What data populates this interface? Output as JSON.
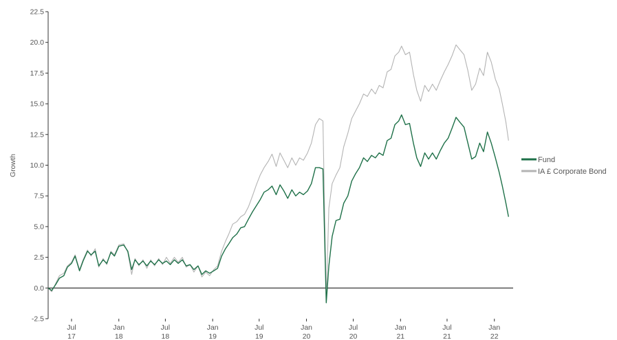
{
  "chart_data": {
    "type": "line",
    "ylabel": "Growth",
    "xlabel": "",
    "ylim": [
      -2.5,
      22.5
    ],
    "xlim": [
      "2017-04-01",
      "2022-03-15"
    ],
    "y_ticks": [
      {
        "value": -2.5,
        "label": "-2.5"
      },
      {
        "value": 0,
        "label": "0.0"
      },
      {
        "value": 2.5,
        "label": "2.5"
      },
      {
        "value": 5,
        "label": "5.0"
      },
      {
        "value": 7.5,
        "label": "7.5"
      },
      {
        "value": 10,
        "label": "10.0"
      },
      {
        "value": 12.5,
        "label": "12.5"
      },
      {
        "value": 15,
        "label": "15.0"
      },
      {
        "value": 17.5,
        "label": "17.5"
      },
      {
        "value": 20,
        "label": "20.0"
      },
      {
        "value": 22.5,
        "label": "22.5"
      }
    ],
    "x_ticks": [
      {
        "date": "2017-07-01",
        "label": [
          "Jul",
          "17"
        ]
      },
      {
        "date": "2018-01-01",
        "label": [
          "Jan",
          "18"
        ]
      },
      {
        "date": "2018-07-01",
        "label": [
          "Jul",
          "18"
        ]
      },
      {
        "date": "2019-01-01",
        "label": [
          "Jan",
          "19"
        ]
      },
      {
        "date": "2019-07-01",
        "label": [
          "Jul",
          "19"
        ]
      },
      {
        "date": "2020-01-01",
        "label": [
          "Jan",
          "20"
        ]
      },
      {
        "date": "2020-07-01",
        "label": [
          "Jul",
          "20"
        ]
      },
      {
        "date": "2021-01-01",
        "label": [
          "Jan",
          "21"
        ]
      },
      {
        "date": "2021-07-01",
        "label": [
          "Jul",
          "21"
        ]
      },
      {
        "date": "2022-01-01",
        "label": [
          "Jan",
          "22"
        ]
      }
    ],
    "zero_line": true,
    "grid": false,
    "legend_position": "right",
    "series": [
      {
        "name": "Fund",
        "color": "#1e7048",
        "points": [
          [
            "2017-04-01",
            0.0
          ],
          [
            "2017-04-15",
            -0.2
          ],
          [
            "2017-05-01",
            0.3
          ],
          [
            "2017-05-15",
            0.8
          ],
          [
            "2017-06-01",
            1.0
          ],
          [
            "2017-06-15",
            1.7
          ],
          [
            "2017-07-01",
            2.0
          ],
          [
            "2017-07-15",
            2.6
          ],
          [
            "2017-08-01",
            1.4
          ],
          [
            "2017-08-15",
            2.2
          ],
          [
            "2017-09-01",
            3.0
          ],
          [
            "2017-09-15",
            2.7
          ],
          [
            "2017-10-01",
            3.0
          ],
          [
            "2017-10-15",
            1.8
          ],
          [
            "2017-11-01",
            2.3
          ],
          [
            "2017-11-15",
            2.0
          ],
          [
            "2017-12-01",
            2.9
          ],
          [
            "2017-12-15",
            2.6
          ],
          [
            "2018-01-01",
            3.4
          ],
          [
            "2018-01-20",
            3.5
          ],
          [
            "2018-02-05",
            3.0
          ],
          [
            "2018-02-20",
            1.5
          ],
          [
            "2018-03-05",
            2.3
          ],
          [
            "2018-03-20",
            1.9
          ],
          [
            "2018-04-05",
            2.2
          ],
          [
            "2018-04-20",
            1.8
          ],
          [
            "2018-05-05",
            2.2
          ],
          [
            "2018-05-20",
            1.9
          ],
          [
            "2018-06-05",
            2.3
          ],
          [
            "2018-06-20",
            2.0
          ],
          [
            "2018-07-05",
            2.2
          ],
          [
            "2018-07-20",
            1.9
          ],
          [
            "2018-08-05",
            2.3
          ],
          [
            "2018-08-20",
            2.0
          ],
          [
            "2018-09-05",
            2.3
          ],
          [
            "2018-09-20",
            1.8
          ],
          [
            "2018-10-05",
            1.9
          ],
          [
            "2018-10-20",
            1.5
          ],
          [
            "2018-11-05",
            1.8
          ],
          [
            "2018-11-20",
            1.1
          ],
          [
            "2018-12-05",
            1.4
          ],
          [
            "2018-12-20",
            1.2
          ],
          [
            "2019-01-05",
            1.4
          ],
          [
            "2019-01-20",
            1.6
          ],
          [
            "2019-02-05",
            2.6
          ],
          [
            "2019-02-20",
            3.2
          ],
          [
            "2019-03-05",
            3.6
          ],
          [
            "2019-03-20",
            4.1
          ],
          [
            "2019-04-05",
            4.4
          ],
          [
            "2019-04-20",
            4.9
          ],
          [
            "2019-05-05",
            5.0
          ],
          [
            "2019-05-20",
            5.6
          ],
          [
            "2019-06-05",
            6.2
          ],
          [
            "2019-06-20",
            6.7
          ],
          [
            "2019-07-05",
            7.2
          ],
          [
            "2019-07-20",
            7.8
          ],
          [
            "2019-08-05",
            8.0
          ],
          [
            "2019-08-20",
            8.3
          ],
          [
            "2019-09-05",
            7.6
          ],
          [
            "2019-09-20",
            8.4
          ],
          [
            "2019-10-05",
            7.9
          ],
          [
            "2019-10-20",
            7.3
          ],
          [
            "2019-11-05",
            8.0
          ],
          [
            "2019-11-20",
            7.5
          ],
          [
            "2019-12-05",
            7.8
          ],
          [
            "2019-12-20",
            7.6
          ],
          [
            "2020-01-05",
            7.9
          ],
          [
            "2020-01-20",
            8.5
          ],
          [
            "2020-02-05",
            9.8
          ],
          [
            "2020-02-20",
            9.8
          ],
          [
            "2020-03-05",
            9.7
          ],
          [
            "2020-03-18",
            -1.2
          ],
          [
            "2020-03-28",
            1.8
          ],
          [
            "2020-04-10",
            4.2
          ],
          [
            "2020-04-25",
            5.5
          ],
          [
            "2020-05-10",
            5.6
          ],
          [
            "2020-05-25",
            6.9
          ],
          [
            "2020-06-10",
            7.5
          ],
          [
            "2020-06-25",
            8.7
          ],
          [
            "2020-07-10",
            9.3
          ],
          [
            "2020-07-25",
            9.8
          ],
          [
            "2020-08-10",
            10.6
          ],
          [
            "2020-08-25",
            10.3
          ],
          [
            "2020-09-10",
            10.8
          ],
          [
            "2020-09-25",
            10.6
          ],
          [
            "2020-10-10",
            11.0
          ],
          [
            "2020-10-25",
            10.8
          ],
          [
            "2020-11-10",
            12.0
          ],
          [
            "2020-11-25",
            12.2
          ],
          [
            "2020-12-10",
            13.3
          ],
          [
            "2020-12-25",
            13.6
          ],
          [
            "2021-01-05",
            14.1
          ],
          [
            "2021-01-20",
            13.3
          ],
          [
            "2021-02-05",
            13.4
          ],
          [
            "2021-02-20",
            11.8
          ],
          [
            "2021-03-05",
            10.6
          ],
          [
            "2021-03-20",
            9.9
          ],
          [
            "2021-04-05",
            11.0
          ],
          [
            "2021-04-20",
            10.5
          ],
          [
            "2021-05-05",
            11.0
          ],
          [
            "2021-05-20",
            10.5
          ],
          [
            "2021-06-05",
            11.2
          ],
          [
            "2021-06-20",
            11.8
          ],
          [
            "2021-07-05",
            12.2
          ],
          [
            "2021-07-20",
            13.0
          ],
          [
            "2021-08-05",
            13.9
          ],
          [
            "2021-08-20",
            13.5
          ],
          [
            "2021-09-05",
            13.1
          ],
          [
            "2021-09-20",
            11.8
          ],
          [
            "2021-10-05",
            10.5
          ],
          [
            "2021-10-20",
            10.7
          ],
          [
            "2021-11-05",
            11.8
          ],
          [
            "2021-11-20",
            11.1
          ],
          [
            "2021-12-05",
            12.7
          ],
          [
            "2021-12-20",
            11.8
          ],
          [
            "2022-01-05",
            10.6
          ],
          [
            "2022-01-20",
            9.4
          ],
          [
            "2022-02-01",
            8.3
          ],
          [
            "2022-02-15",
            6.9
          ],
          [
            "2022-02-25",
            5.8
          ]
        ]
      },
      {
        "name": "IA £ Corporate Bond",
        "color": "#b3b3b3",
        "points": [
          [
            "2017-04-01",
            0.0
          ],
          [
            "2017-04-15",
            -0.3
          ],
          [
            "2017-05-01",
            0.4
          ],
          [
            "2017-05-15",
            1.0
          ],
          [
            "2017-06-01",
            1.2
          ],
          [
            "2017-06-15",
            1.8
          ],
          [
            "2017-07-01",
            2.1
          ],
          [
            "2017-07-15",
            2.7
          ],
          [
            "2017-08-01",
            1.5
          ],
          [
            "2017-08-15",
            2.3
          ],
          [
            "2017-09-01",
            3.1
          ],
          [
            "2017-09-15",
            2.6
          ],
          [
            "2017-10-01",
            3.2
          ],
          [
            "2017-10-15",
            1.7
          ],
          [
            "2017-11-01",
            2.4
          ],
          [
            "2017-11-15",
            1.9
          ],
          [
            "2017-12-01",
            3.0
          ],
          [
            "2017-12-15",
            2.7
          ],
          [
            "2018-01-01",
            3.5
          ],
          [
            "2018-01-20",
            3.6
          ],
          [
            "2018-02-05",
            2.9
          ],
          [
            "2018-02-20",
            1.1
          ],
          [
            "2018-03-05",
            2.4
          ],
          [
            "2018-03-20",
            1.8
          ],
          [
            "2018-04-05",
            2.3
          ],
          [
            "2018-04-20",
            1.6
          ],
          [
            "2018-05-05",
            2.3
          ],
          [
            "2018-05-20",
            1.8
          ],
          [
            "2018-06-05",
            2.4
          ],
          [
            "2018-06-20",
            1.9
          ],
          [
            "2018-07-05",
            2.5
          ],
          [
            "2018-07-20",
            2.0
          ],
          [
            "2018-08-05",
            2.5
          ],
          [
            "2018-08-20",
            2.1
          ],
          [
            "2018-09-05",
            2.5
          ],
          [
            "2018-09-20",
            1.7
          ],
          [
            "2018-10-05",
            1.9
          ],
          [
            "2018-10-20",
            1.3
          ],
          [
            "2018-11-05",
            1.8
          ],
          [
            "2018-11-20",
            0.9
          ],
          [
            "2018-12-05",
            1.3
          ],
          [
            "2018-12-20",
            1.0
          ],
          [
            "2019-01-05",
            1.5
          ],
          [
            "2019-01-20",
            1.8
          ],
          [
            "2019-02-05",
            3.0
          ],
          [
            "2019-02-20",
            3.8
          ],
          [
            "2019-03-05",
            4.4
          ],
          [
            "2019-03-20",
            5.2
          ],
          [
            "2019-04-05",
            5.4
          ],
          [
            "2019-04-20",
            5.8
          ],
          [
            "2019-05-05",
            6.0
          ],
          [
            "2019-05-20",
            6.6
          ],
          [
            "2019-06-05",
            7.5
          ],
          [
            "2019-06-20",
            8.4
          ],
          [
            "2019-07-05",
            9.2
          ],
          [
            "2019-07-20",
            9.8
          ],
          [
            "2019-08-05",
            10.3
          ],
          [
            "2019-08-20",
            10.9
          ],
          [
            "2019-09-05",
            9.9
          ],
          [
            "2019-09-20",
            11.0
          ],
          [
            "2019-10-05",
            10.4
          ],
          [
            "2019-10-20",
            9.8
          ],
          [
            "2019-11-05",
            10.6
          ],
          [
            "2019-11-20",
            10.0
          ],
          [
            "2019-12-05",
            10.6
          ],
          [
            "2019-12-20",
            10.4
          ],
          [
            "2020-01-05",
            11.0
          ],
          [
            "2020-01-20",
            11.8
          ],
          [
            "2020-02-05",
            13.3
          ],
          [
            "2020-02-20",
            13.8
          ],
          [
            "2020-03-05",
            13.6
          ],
          [
            "2020-03-18",
            -1.0
          ],
          [
            "2020-03-28",
            6.5
          ],
          [
            "2020-04-10",
            8.5
          ],
          [
            "2020-04-25",
            9.2
          ],
          [
            "2020-05-10",
            9.8
          ],
          [
            "2020-05-25",
            11.5
          ],
          [
            "2020-06-10",
            12.6
          ],
          [
            "2020-06-25",
            13.8
          ],
          [
            "2020-07-10",
            14.4
          ],
          [
            "2020-07-25",
            15.0
          ],
          [
            "2020-08-10",
            15.8
          ],
          [
            "2020-08-25",
            15.6
          ],
          [
            "2020-09-10",
            16.2
          ],
          [
            "2020-09-25",
            15.8
          ],
          [
            "2020-10-10",
            16.5
          ],
          [
            "2020-10-25",
            16.3
          ],
          [
            "2020-11-10",
            17.6
          ],
          [
            "2020-11-25",
            17.8
          ],
          [
            "2020-12-10",
            18.9
          ],
          [
            "2020-12-25",
            19.2
          ],
          [
            "2021-01-05",
            19.7
          ],
          [
            "2021-01-20",
            19.0
          ],
          [
            "2021-02-05",
            19.2
          ],
          [
            "2021-02-20",
            17.4
          ],
          [
            "2021-03-05",
            16.1
          ],
          [
            "2021-03-20",
            15.2
          ],
          [
            "2021-04-05",
            16.5
          ],
          [
            "2021-04-20",
            16.0
          ],
          [
            "2021-05-05",
            16.6
          ],
          [
            "2021-05-20",
            16.1
          ],
          [
            "2021-06-05",
            16.9
          ],
          [
            "2021-06-20",
            17.6
          ],
          [
            "2021-07-05",
            18.2
          ],
          [
            "2021-07-20",
            18.9
          ],
          [
            "2021-08-05",
            19.8
          ],
          [
            "2021-08-20",
            19.4
          ],
          [
            "2021-09-05",
            19.0
          ],
          [
            "2021-09-20",
            17.7
          ],
          [
            "2021-10-05",
            16.1
          ],
          [
            "2021-10-20",
            16.6
          ],
          [
            "2021-11-05",
            17.9
          ],
          [
            "2021-11-20",
            17.3
          ],
          [
            "2021-12-05",
            19.2
          ],
          [
            "2021-12-20",
            18.4
          ],
          [
            "2022-01-05",
            17.0
          ],
          [
            "2022-01-20",
            16.2
          ],
          [
            "2022-02-01",
            15.0
          ],
          [
            "2022-02-15",
            13.5
          ],
          [
            "2022-02-25",
            12.0
          ]
        ]
      }
    ]
  }
}
